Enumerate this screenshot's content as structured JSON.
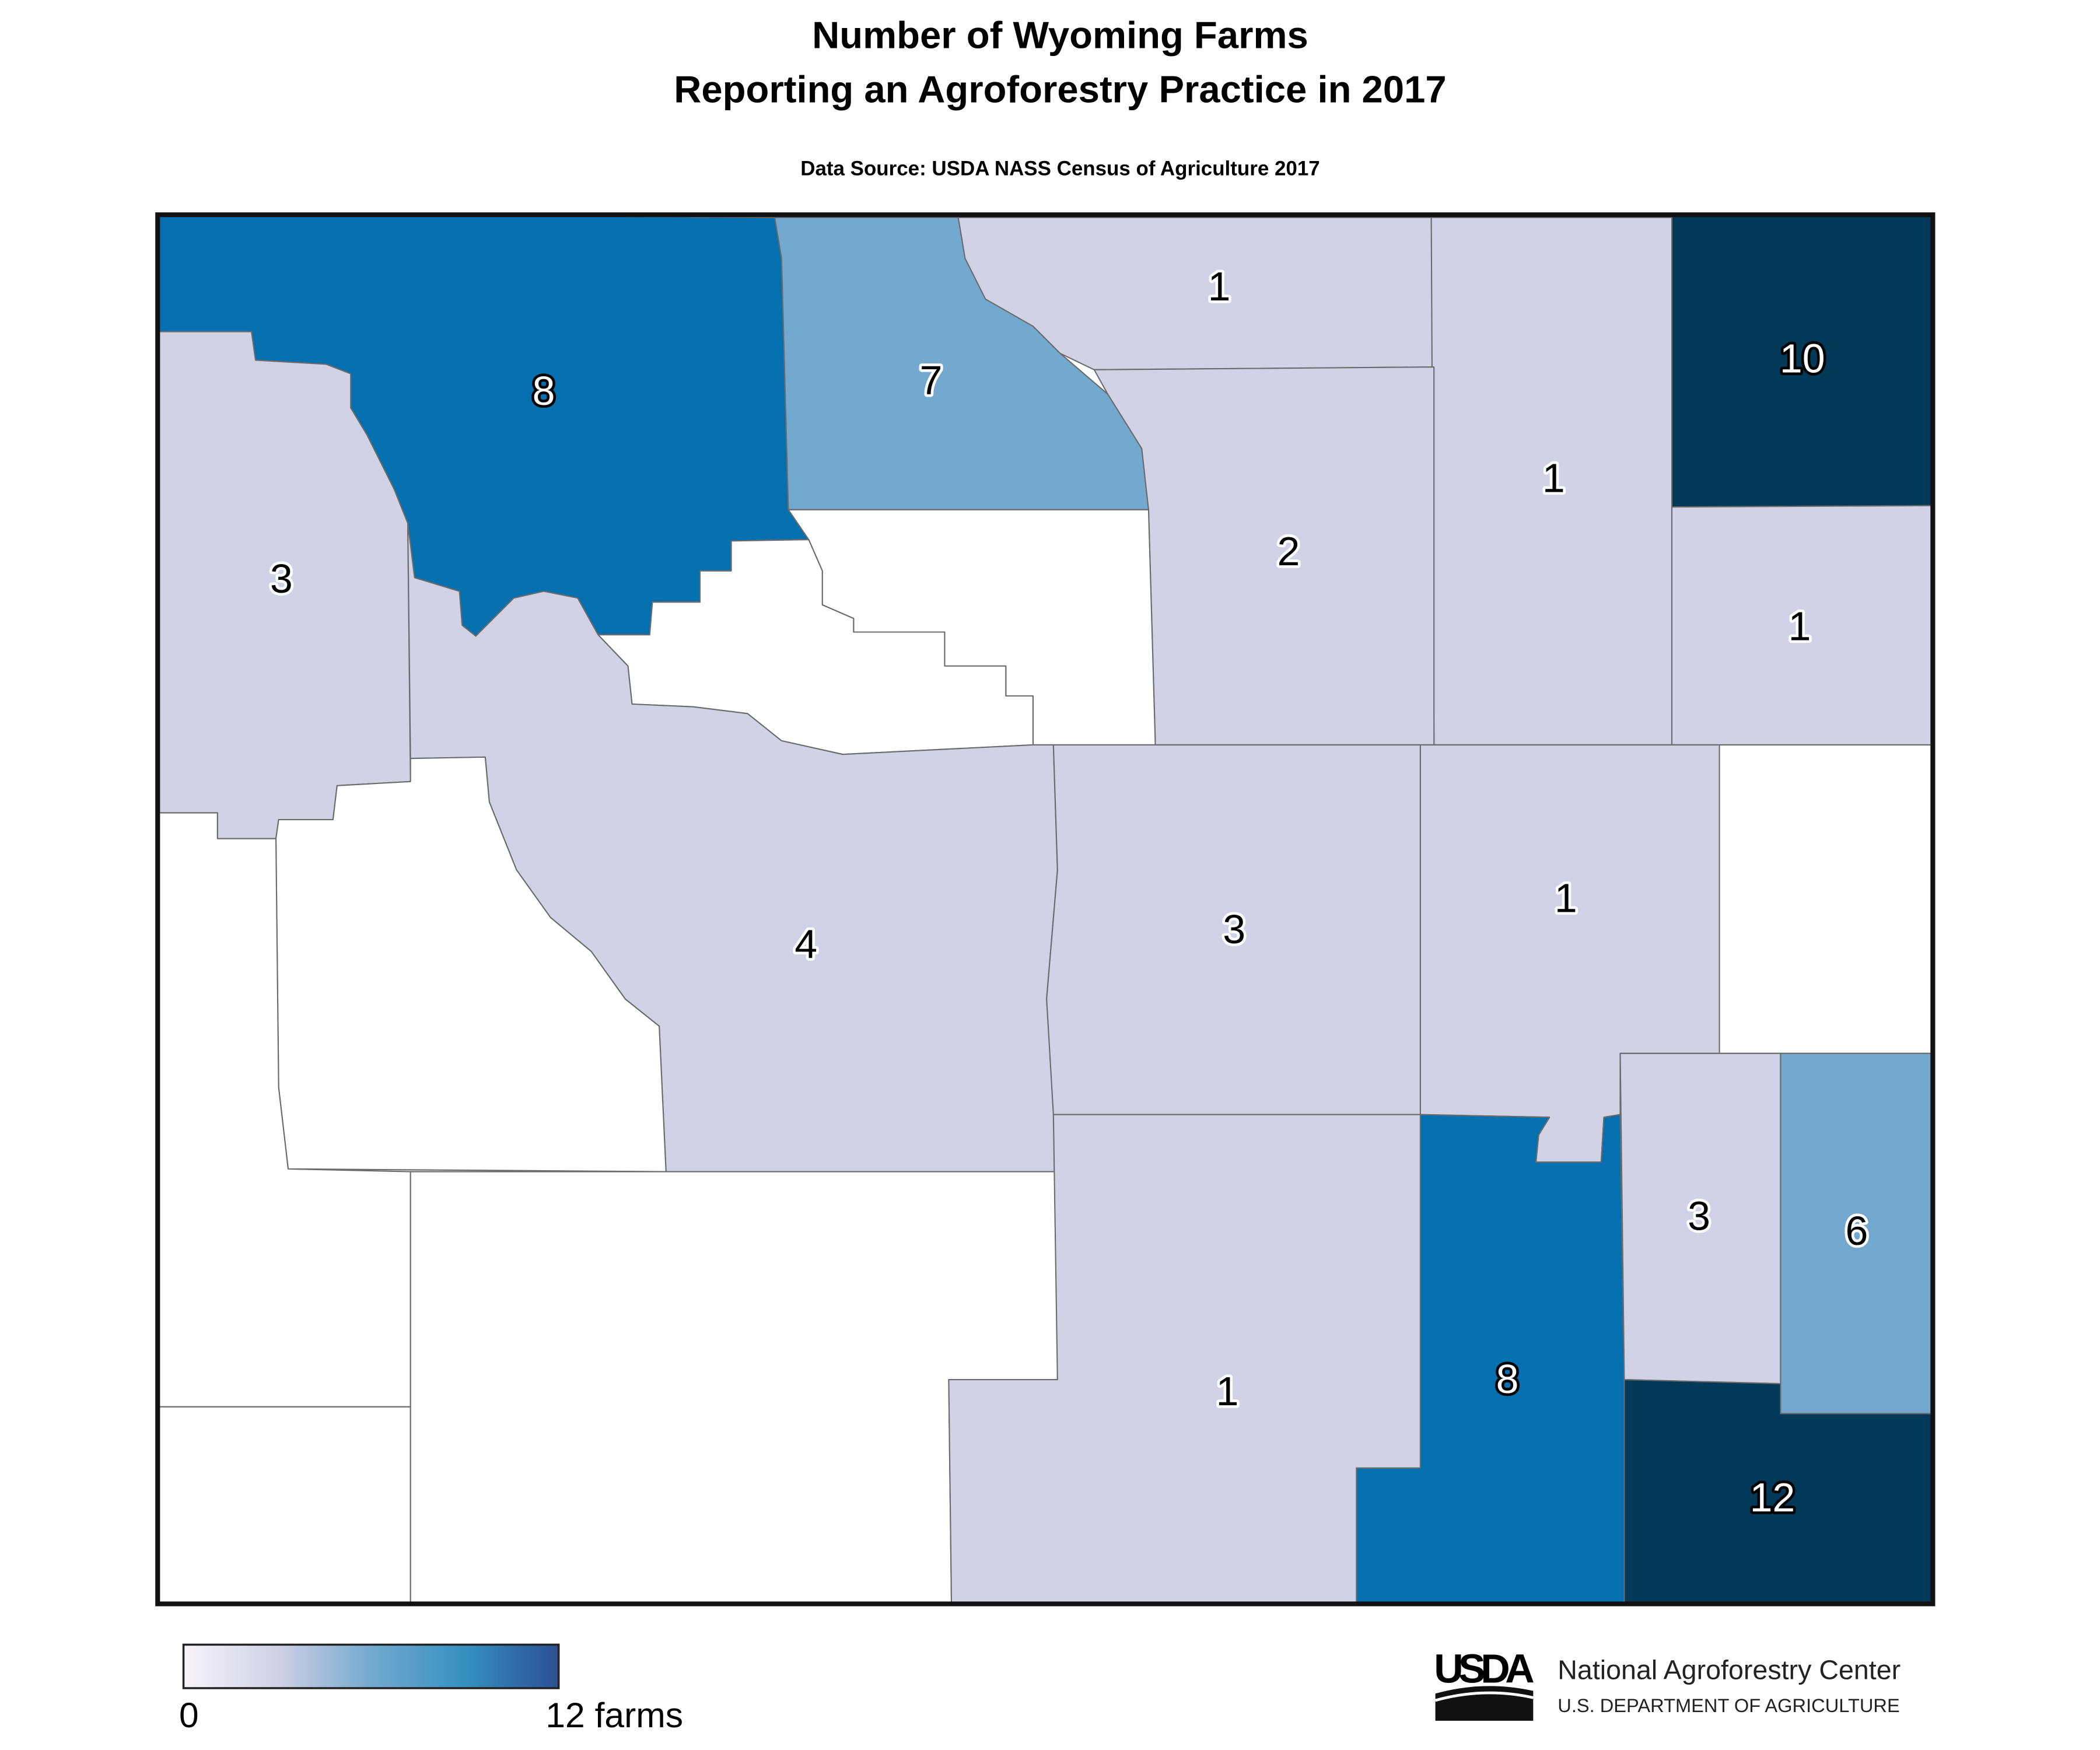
{
  "header": {
    "title_lines": [
      "Number of Wyoming Farms",
      "Reporting an Agroforestry Practice in 2017"
    ],
    "source": "Data Source: USDA NASS Census of Agriculture 2017"
  },
  "map": {
    "counties": [
      {
        "value": 8,
        "color": "#0570b0"
      },
      {
        "value": 7,
        "color": "#74a9cf"
      },
      {
        "value": 1,
        "color": "#d2d2e7"
      },
      {
        "value": 10,
        "color": "#023858"
      },
      {
        "value": 1,
        "color": "#d2d2e7"
      },
      {
        "value": 2,
        "color": "#d2d2e7"
      },
      {
        "value": 1,
        "color": "#d2d2e7"
      },
      {
        "value": null,
        "color": "#ffffff"
      },
      {
        "value": null,
        "color": "#ffffff"
      },
      {
        "value": 3,
        "color": "#d2d2e7"
      },
      {
        "value": 4,
        "color": "#d2d2e7"
      },
      {
        "value": null,
        "color": "#ffffff"
      },
      {
        "value": null,
        "color": "#ffffff"
      },
      {
        "value": null,
        "color": "#ffffff"
      },
      {
        "value": null,
        "color": "#ffffff"
      },
      {
        "value": 3,
        "color": "#d2d2e7"
      },
      {
        "value": 1,
        "color": "#d2d2e7"
      },
      {
        "value": null,
        "color": "#ffffff"
      },
      {
        "value": 1,
        "color": "#d2d2e7"
      },
      {
        "value": 8,
        "color": "#0570b0"
      },
      {
        "value": 3,
        "color": "#d2d2e7"
      },
      {
        "value": 6,
        "color": "#74a9cf"
      },
      {
        "value": 12,
        "color": "#023858"
      }
    ]
  },
  "legend": {
    "min_label": "0",
    "max_label": "12 farms",
    "colors": [
      "#f7f4f9",
      "#d0d1e6",
      "#74a9cf",
      "#3690c0",
      "#2b4f93"
    ]
  },
  "footer": {
    "logo": "USDA",
    "org": "National Agroforestry Center",
    "department": "U.S. DEPARTMENT OF AGRICULTURE"
  }
}
